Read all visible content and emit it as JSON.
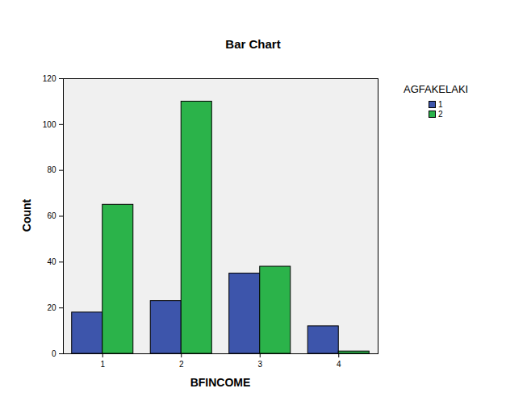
{
  "chart_data": {
    "type": "bar",
    "title": "Bar Chart",
    "x_label": "BFINCOME",
    "y_label": "Count",
    "legend_title": "AGFAKELAKI",
    "legend": "right",
    "categories": [
      "1",
      "2",
      "3",
      "4"
    ],
    "series": [
      {
        "name": "1",
        "color": "#3d55ab",
        "values": [
          18,
          23,
          35,
          12
        ]
      },
      {
        "name": "2",
        "color": "#2bb34a",
        "values": [
          65,
          110,
          38,
          1
        ]
      }
    ],
    "ylim": [
      0,
      120
    ],
    "yticks": [
      0,
      20,
      40,
      60,
      80,
      100,
      120
    ]
  }
}
